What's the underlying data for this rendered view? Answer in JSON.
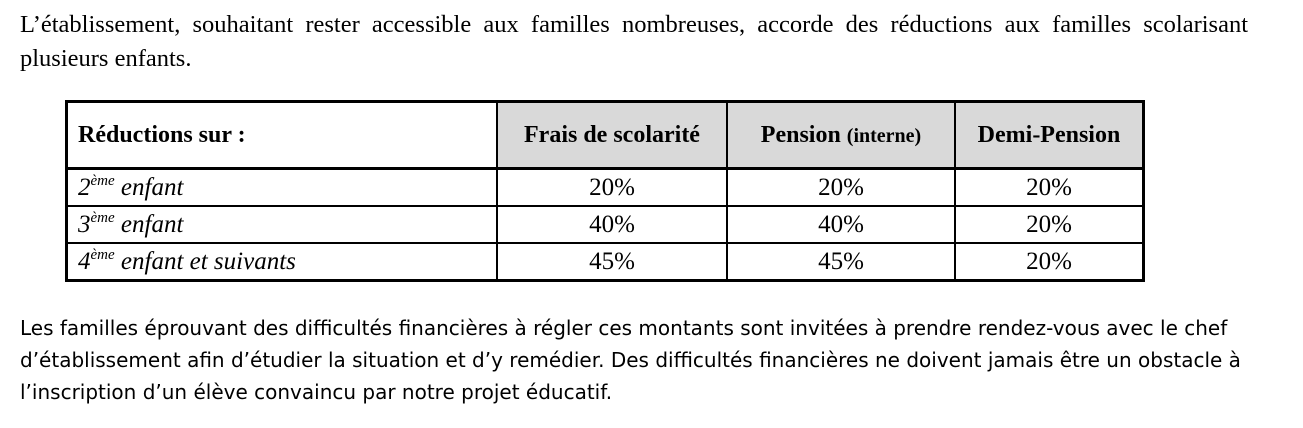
{
  "intro": "L’établissement, souhaitant rester accessible aux familles nombreuses, accorde des réductions aux familles scolarisant plusieurs enfants.",
  "table": {
    "headers": {
      "label": "Réductions sur :",
      "frais": "Frais de scolarité",
      "pension": "Pension",
      "pension_note": "(interne)",
      "demi": "Demi-Pension"
    },
    "rows": [
      {
        "num": "2",
        "sup": "ème",
        "label": "enfant",
        "frais": "20%",
        "pension": "20%",
        "demi": "20%"
      },
      {
        "num": "3",
        "sup": "ème",
        "label": "enfant",
        "frais": "40%",
        "pension": "40%",
        "demi": "20%"
      },
      {
        "num": "4",
        "sup": "ème",
        "label": "enfant et suivants",
        "frais": "45%",
        "pension": "45%",
        "demi": "20%"
      }
    ]
  },
  "outro": "Les familles éprouvant des difficultés financières à régler ces montants sont invitées à prendre rendez-vous avec le chef d’établissement afin d’étudier la situation et d’y remédier. Des difficultés financières ne doivent jamais être un obstacle à l’inscription d’un élève convaincu par notre projet éducatif."
}
